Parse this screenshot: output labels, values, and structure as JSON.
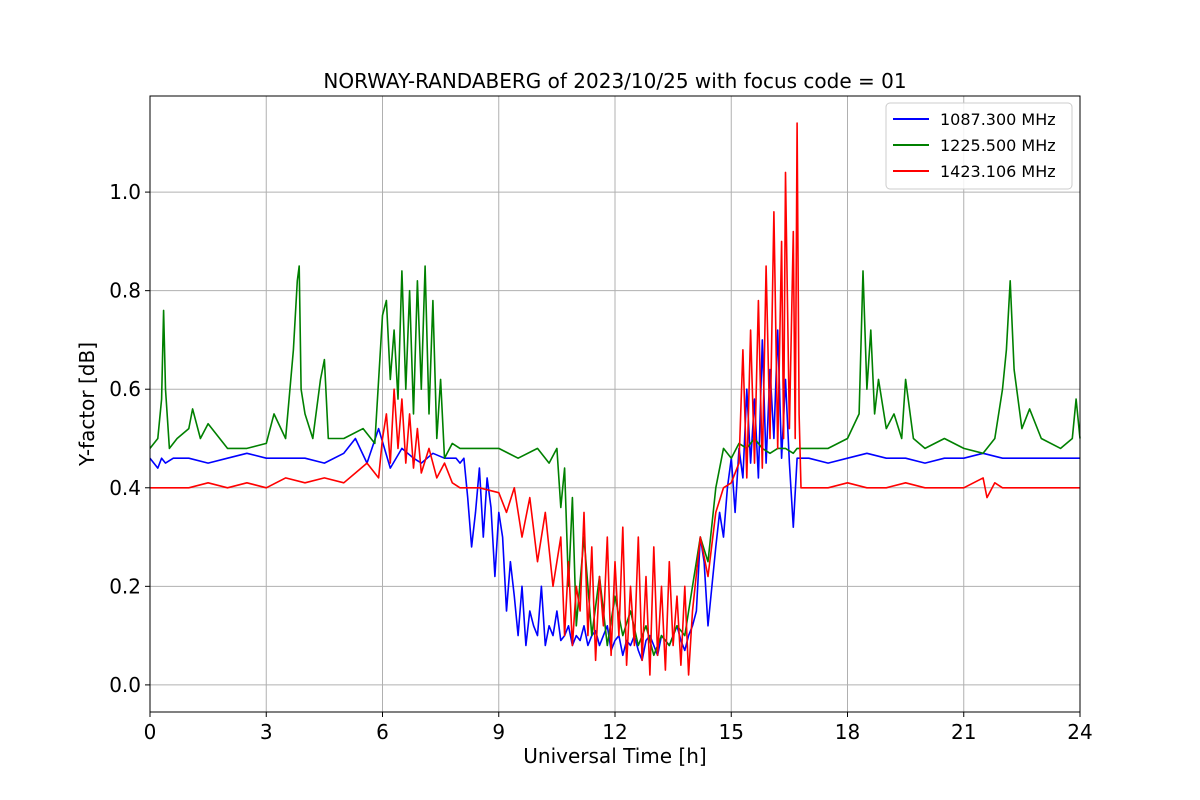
{
  "chart_data": {
    "type": "line",
    "title": "NORWAY-RANDABERG of 2023/10/25 with focus code = 01",
    "xlabel": "Universal Time [h]",
    "ylabel": "Y-factor [dB]",
    "xlim": [
      0,
      24
    ],
    "ylim": [
      -0.055,
      1.195
    ],
    "xticks": [
      0,
      3,
      6,
      9,
      12,
      15,
      18,
      21,
      24
    ],
    "xtick_labels": [
      "0",
      "3",
      "6",
      "9",
      "12",
      "15",
      "18",
      "21",
      "24"
    ],
    "yticks": [
      0.0,
      0.2,
      0.4,
      0.6,
      0.8,
      1.0
    ],
    "ytick_labels": [
      "0.0",
      "0.2",
      "0.4",
      "0.6",
      "0.8",
      "1.0"
    ],
    "grid": true,
    "legend_position": "top-right",
    "series": [
      {
        "name": "1087.300 MHz",
        "color": "#0000ff",
        "x": [
          0.0,
          0.2,
          0.3,
          0.4,
          0.6,
          1.0,
          1.5,
          2.0,
          2.5,
          3.0,
          3.5,
          4.0,
          4.5,
          5.0,
          5.3,
          5.6,
          5.9,
          6.2,
          6.5,
          6.8,
          7.0,
          7.3,
          7.6,
          7.9,
          8.0,
          8.1,
          8.2,
          8.3,
          8.4,
          8.5,
          8.6,
          8.7,
          8.8,
          8.9,
          9.0,
          9.1,
          9.2,
          9.3,
          9.4,
          9.5,
          9.6,
          9.7,
          9.8,
          9.9,
          10.0,
          10.1,
          10.2,
          10.3,
          10.4,
          10.5,
          10.6,
          10.7,
          10.8,
          10.9,
          11.0,
          11.1,
          11.2,
          11.3,
          11.4,
          11.5,
          11.6,
          11.7,
          11.8,
          11.9,
          12.0,
          12.1,
          12.2,
          12.3,
          12.4,
          12.5,
          12.6,
          12.7,
          12.8,
          12.9,
          13.0,
          13.1,
          13.2,
          13.3,
          13.4,
          13.5,
          13.6,
          13.7,
          13.8,
          13.9,
          14.0,
          14.1,
          14.2,
          14.3,
          14.4,
          14.5,
          14.6,
          14.7,
          14.8,
          14.9,
          15.0,
          15.1,
          15.2,
          15.3,
          15.4,
          15.5,
          15.6,
          15.7,
          15.8,
          15.9,
          16.0,
          16.1,
          16.2,
          16.3,
          16.4,
          16.5,
          16.6,
          16.7,
          16.8,
          17.0,
          17.5,
          18.0,
          18.5,
          19.0,
          19.5,
          20.0,
          20.5,
          21.0,
          21.5,
          22.0,
          22.5,
          23.0,
          23.5,
          24.0
        ],
        "y": [
          0.46,
          0.44,
          0.46,
          0.45,
          0.46,
          0.46,
          0.45,
          0.46,
          0.47,
          0.46,
          0.46,
          0.46,
          0.45,
          0.47,
          0.5,
          0.45,
          0.52,
          0.44,
          0.48,
          0.46,
          0.45,
          0.47,
          0.46,
          0.46,
          0.45,
          0.46,
          0.38,
          0.28,
          0.35,
          0.44,
          0.3,
          0.42,
          0.36,
          0.22,
          0.35,
          0.3,
          0.15,
          0.25,
          0.18,
          0.1,
          0.2,
          0.08,
          0.15,
          0.12,
          0.1,
          0.2,
          0.08,
          0.12,
          0.1,
          0.15,
          0.09,
          0.1,
          0.12,
          0.08,
          0.1,
          0.09,
          0.12,
          0.08,
          0.1,
          0.11,
          0.08,
          0.1,
          0.12,
          0.07,
          0.09,
          0.1,
          0.06,
          0.09,
          0.08,
          0.1,
          0.07,
          0.05,
          0.09,
          0.1,
          0.08,
          0.06,
          0.1,
          0.09,
          0.08,
          0.1,
          0.12,
          0.09,
          0.07,
          0.1,
          0.12,
          0.15,
          0.3,
          0.25,
          0.12,
          0.2,
          0.28,
          0.35,
          0.3,
          0.4,
          0.46,
          0.35,
          0.48,
          0.42,
          0.6,
          0.45,
          0.58,
          0.42,
          0.7,
          0.45,
          0.64,
          0.5,
          0.72,
          0.46,
          0.62,
          0.45,
          0.32,
          0.46,
          0.46,
          0.46,
          0.45,
          0.46,
          0.47,
          0.46,
          0.46,
          0.45,
          0.46,
          0.46,
          0.47,
          0.46,
          0.46,
          0.46,
          0.46,
          0.46
        ]
      },
      {
        "name": "1225.500 MHz",
        "color": "#008000",
        "x": [
          0.0,
          0.2,
          0.3,
          0.35,
          0.4,
          0.5,
          0.7,
          1.0,
          1.1,
          1.3,
          1.5,
          2.0,
          2.5,
          3.0,
          3.2,
          3.5,
          3.7,
          3.8,
          3.85,
          3.9,
          4.0,
          4.2,
          4.4,
          4.5,
          4.6,
          5.0,
          5.5,
          5.8,
          6.0,
          6.1,
          6.2,
          6.3,
          6.4,
          6.5,
          6.6,
          6.7,
          6.8,
          6.9,
          7.0,
          7.1,
          7.2,
          7.3,
          7.4,
          7.5,
          7.6,
          7.8,
          8.0,
          8.5,
          9.0,
          9.5,
          10.0,
          10.3,
          10.5,
          10.6,
          10.7,
          10.8,
          10.9,
          11.0,
          11.2,
          11.4,
          11.6,
          11.8,
          12.0,
          12.2,
          12.4,
          12.6,
          12.8,
          13.0,
          13.2,
          13.4,
          13.6,
          13.8,
          14.0,
          14.2,
          14.4,
          14.6,
          14.8,
          15.0,
          15.2,
          15.4,
          15.6,
          15.8,
          16.0,
          16.2,
          16.4,
          16.6,
          16.7,
          16.8,
          17.0,
          17.5,
          18.0,
          18.3,
          18.4,
          18.5,
          18.6,
          18.7,
          18.8,
          19.0,
          19.2,
          19.4,
          19.5,
          19.7,
          20.0,
          20.5,
          21.0,
          21.5,
          21.8,
          22.0,
          22.1,
          22.2,
          22.3,
          22.5,
          22.7,
          23.0,
          23.5,
          23.8,
          23.9,
          24.0
        ],
        "y": [
          0.48,
          0.5,
          0.58,
          0.76,
          0.6,
          0.48,
          0.5,
          0.52,
          0.56,
          0.5,
          0.53,
          0.48,
          0.48,
          0.49,
          0.55,
          0.5,
          0.68,
          0.82,
          0.85,
          0.6,
          0.55,
          0.5,
          0.62,
          0.66,
          0.5,
          0.5,
          0.52,
          0.49,
          0.75,
          0.78,
          0.62,
          0.72,
          0.58,
          0.84,
          0.6,
          0.8,
          0.55,
          0.82,
          0.6,
          0.85,
          0.55,
          0.78,
          0.5,
          0.62,
          0.46,
          0.49,
          0.48,
          0.48,
          0.48,
          0.46,
          0.48,
          0.45,
          0.48,
          0.36,
          0.44,
          0.2,
          0.38,
          0.12,
          0.3,
          0.1,
          0.22,
          0.08,
          0.18,
          0.1,
          0.15,
          0.08,
          0.12,
          0.06,
          0.1,
          0.08,
          0.12,
          0.1,
          0.2,
          0.3,
          0.25,
          0.4,
          0.48,
          0.46,
          0.49,
          0.48,
          0.5,
          0.48,
          0.47,
          0.48,
          0.48,
          0.47,
          0.48,
          0.48,
          0.48,
          0.48,
          0.5,
          0.55,
          0.84,
          0.6,
          0.72,
          0.55,
          0.62,
          0.52,
          0.55,
          0.5,
          0.62,
          0.5,
          0.48,
          0.5,
          0.48,
          0.47,
          0.5,
          0.6,
          0.68,
          0.82,
          0.64,
          0.52,
          0.56,
          0.5,
          0.48,
          0.5,
          0.58,
          0.5
        ]
      },
      {
        "name": "1423.106 MHz",
        "color": "#ff0000",
        "x": [
          0.0,
          0.5,
          1.0,
          1.5,
          2.0,
          2.5,
          3.0,
          3.5,
          4.0,
          4.5,
          5.0,
          5.3,
          5.6,
          5.9,
          6.0,
          6.1,
          6.2,
          6.3,
          6.4,
          6.5,
          6.6,
          6.7,
          6.8,
          6.9,
          7.0,
          7.2,
          7.4,
          7.6,
          7.8,
          8.0,
          8.5,
          9.0,
          9.2,
          9.4,
          9.6,
          9.8,
          10.0,
          10.2,
          10.4,
          10.6,
          10.7,
          10.8,
          10.9,
          11.0,
          11.1,
          11.2,
          11.3,
          11.4,
          11.5,
          11.6,
          11.7,
          11.8,
          11.9,
          12.0,
          12.1,
          12.2,
          12.3,
          12.4,
          12.5,
          12.6,
          12.7,
          12.8,
          12.9,
          13.0,
          13.1,
          13.2,
          13.3,
          13.4,
          13.5,
          13.6,
          13.7,
          13.8,
          13.9,
          14.0,
          14.2,
          14.4,
          14.6,
          14.8,
          15.0,
          15.2,
          15.3,
          15.4,
          15.5,
          15.6,
          15.7,
          15.8,
          15.9,
          16.0,
          16.1,
          16.2,
          16.3,
          16.35,
          16.4,
          16.5,
          16.6,
          16.65,
          16.7,
          16.75,
          16.8,
          17.0,
          17.5,
          18.0,
          18.5,
          19.0,
          19.5,
          20.0,
          20.5,
          21.0,
          21.5,
          21.6,
          21.8,
          22.0,
          22.5,
          23.0,
          23.5,
          24.0
        ],
        "y": [
          0.4,
          0.4,
          0.4,
          0.41,
          0.4,
          0.41,
          0.4,
          0.42,
          0.41,
          0.42,
          0.41,
          0.43,
          0.45,
          0.42,
          0.5,
          0.55,
          0.45,
          0.6,
          0.48,
          0.58,
          0.45,
          0.55,
          0.44,
          0.52,
          0.43,
          0.48,
          0.42,
          0.45,
          0.41,
          0.4,
          0.4,
          0.39,
          0.35,
          0.4,
          0.3,
          0.38,
          0.25,
          0.35,
          0.2,
          0.3,
          0.1,
          0.25,
          0.08,
          0.2,
          0.15,
          0.35,
          0.1,
          0.28,
          0.05,
          0.22,
          0.12,
          0.3,
          0.06,
          0.25,
          0.1,
          0.32,
          0.04,
          0.2,
          0.08,
          0.3,
          0.05,
          0.22,
          0.02,
          0.28,
          0.06,
          0.2,
          0.03,
          0.25,
          0.08,
          0.18,
          0.04,
          0.2,
          0.02,
          0.15,
          0.3,
          0.22,
          0.35,
          0.4,
          0.41,
          0.45,
          0.68,
          0.42,
          0.72,
          0.45,
          0.78,
          0.44,
          0.85,
          0.5,
          0.96,
          0.48,
          0.9,
          0.5,
          1.04,
          0.52,
          0.92,
          0.5,
          1.14,
          0.55,
          0.4,
          0.4,
          0.4,
          0.41,
          0.4,
          0.4,
          0.41,
          0.4,
          0.4,
          0.4,
          0.42,
          0.38,
          0.41,
          0.4,
          0.4,
          0.4,
          0.4,
          0.4
        ]
      }
    ]
  }
}
